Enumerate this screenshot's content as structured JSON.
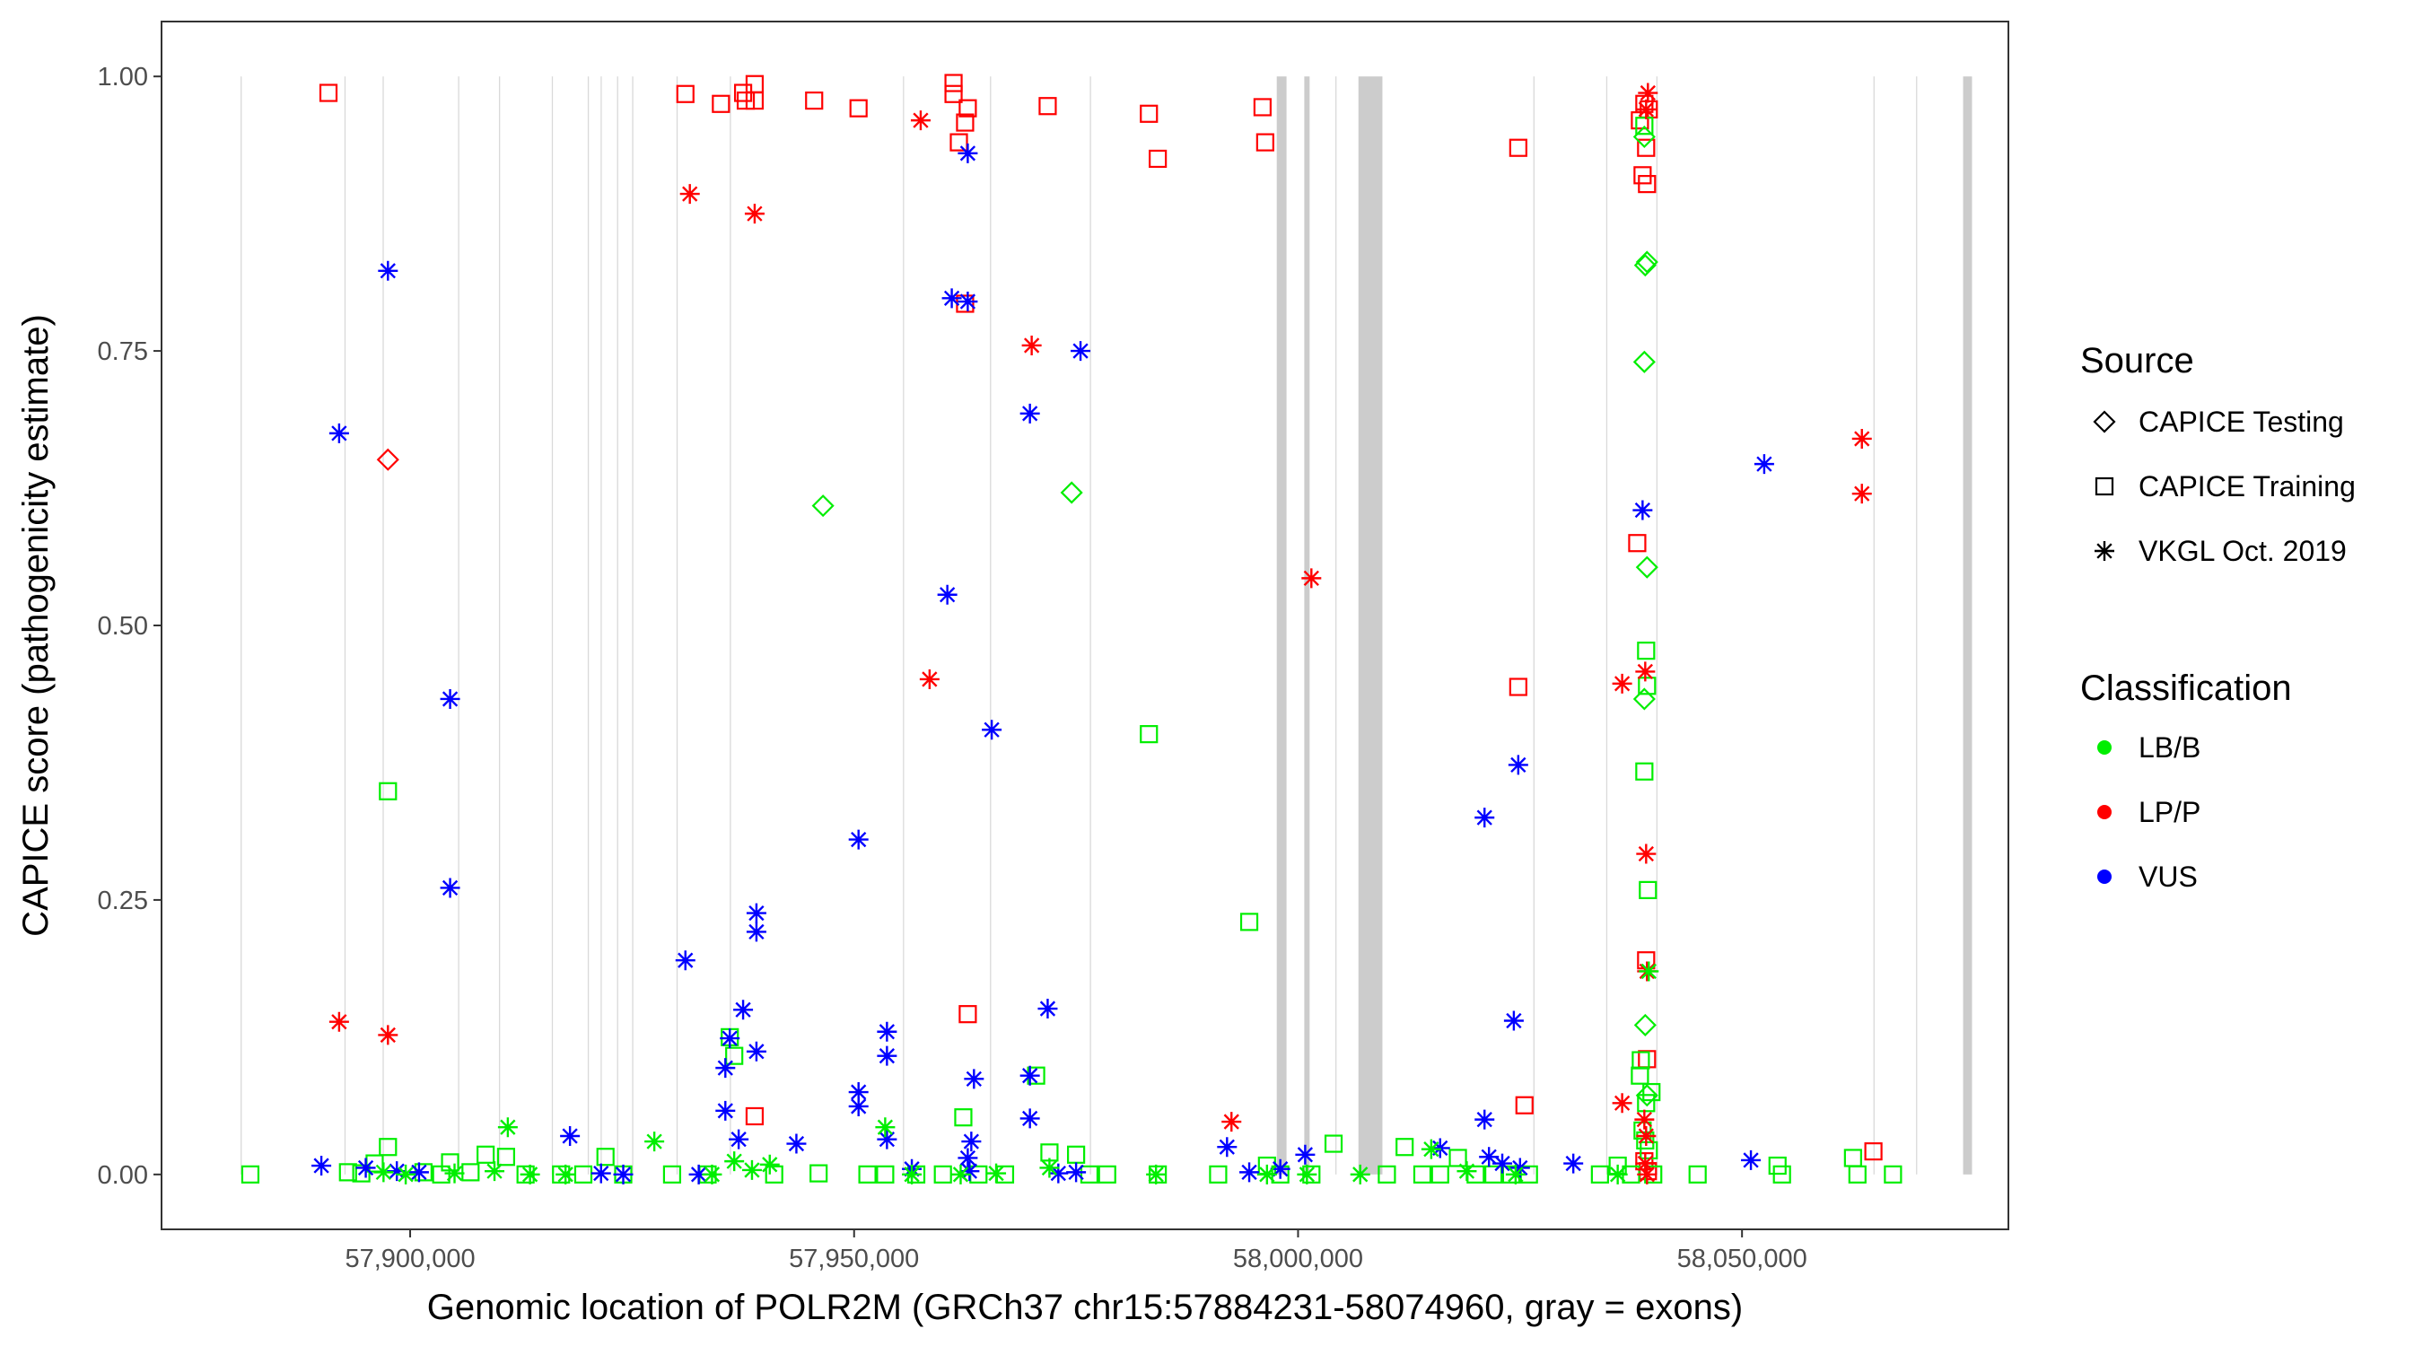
{
  "chart_data": {
    "type": "scatter",
    "xlabel": "Genomic location of POLR2M (GRCh37 chr15:57884231-58074960, gray = exons)",
    "ylabel": "CAPICE score (pathogenicity estimate)",
    "xlim": [
      57872000,
      58080000
    ],
    "ylim": [
      -0.05,
      1.05
    ],
    "x_ticks": [
      57900000,
      57950000,
      58000000,
      58050000
    ],
    "x_tick_labels": [
      "57,900,000",
      "57,950,000",
      "58,000,000",
      "58,050,000"
    ],
    "y_ticks": [
      0.0,
      0.25,
      0.5,
      0.75,
      1.0
    ],
    "y_tick_labels": [
      "0.00",
      "0.25",
      "0.50",
      "0.75",
      "1.00"
    ],
    "exons": [
      [
        57880900,
        57880950
      ],
      [
        57892600,
        57892650
      ],
      [
        57896900,
        57896950
      ],
      [
        57905400,
        57905450
      ],
      [
        57910000,
        57910050
      ],
      [
        57915950,
        57916000
      ],
      [
        57920000,
        57920050
      ],
      [
        57921450,
        57921500
      ],
      [
        57923300,
        57923350
      ],
      [
        57925000,
        57925050
      ],
      [
        57930000,
        57930050
      ],
      [
        57936000,
        57936050
      ],
      [
        57955500,
        57955550
      ],
      [
        57965300,
        57965350
      ],
      [
        57976550,
        57976600
      ],
      [
        57997600,
        57998700
      ],
      [
        58000700,
        58001300
      ],
      [
        58004200,
        58004250
      ],
      [
        58006800,
        58009500
      ],
      [
        58026500,
        58026550
      ],
      [
        58034700,
        58034750
      ],
      [
        58040350,
        58040400
      ],
      [
        58064800,
        58064850
      ],
      [
        58069600,
        58069650
      ],
      [
        58074900,
        58075900
      ]
    ],
    "legend": {
      "source_title": "Source",
      "source_items": [
        {
          "label": "CAPICE Testing",
          "shape": "diamond"
        },
        {
          "label": "CAPICE Training",
          "shape": "square"
        },
        {
          "label": "VKGL Oct. 2019",
          "shape": "asterisk"
        }
      ],
      "class_title": "Classification",
      "class_items": [
        {
          "label": "LB/B",
          "color": "#00ee00"
        },
        {
          "label": "LP/P",
          "color": "#ff0000"
        },
        {
          "label": "VUS",
          "color": "#0000ff"
        }
      ]
    },
    "colors": {
      "LB/B": "#00ee00",
      "LP/P": "#ff0000",
      "VUS": "#0000ff",
      "exon": "#cccccc"
    },
    "series": [
      {
        "name": "CAPICE Training LP/P",
        "source": "CAPICE Training",
        "class": "LP/P",
        "points": [
          [
            57890800,
            0.985
          ],
          [
            57931000,
            0.984
          ],
          [
            57935000,
            0.975
          ],
          [
            57937500,
            0.985
          ],
          [
            57937800,
            0.978
          ],
          [
            57938800,
            0.993
          ],
          [
            57938800,
            0.978
          ],
          [
            57945500,
            0.978
          ],
          [
            57950500,
            0.971
          ],
          [
            57961200,
            0.994
          ],
          [
            57961200,
            0.984
          ],
          [
            57962500,
            0.958
          ],
          [
            57962800,
            0.971
          ],
          [
            57961800,
            0.94
          ],
          [
            57971800,
            0.973
          ],
          [
            57983200,
            0.966
          ],
          [
            57984200,
            0.925
          ],
          [
            57996000,
            0.972
          ],
          [
            57996300,
            0.94
          ],
          [
            58024800,
            0.935
          ],
          [
            57962500,
            0.793
          ],
          [
            58038200,
            0.575
          ],
          [
            58024800,
            0.444
          ],
          [
            58039200,
            0.935
          ],
          [
            58038800,
            0.91
          ],
          [
            58039300,
            0.902
          ],
          [
            58039000,
            0.975
          ],
          [
            58038500,
            0.96
          ],
          [
            58039500,
            0.97
          ],
          [
            58039200,
            0.195
          ],
          [
            58039300,
            0.105
          ],
          [
            58025500,
            0.063
          ],
          [
            58039000,
            0.012
          ],
          [
            57938800,
            0.053
          ],
          [
            57962800,
            0.146
          ],
          [
            58064800,
            0.021
          ],
          [
            58039400,
            0.003
          ]
        ]
      },
      {
        "name": "CAPICE Training LB/B",
        "source": "CAPICE Training",
        "class": "LB/B",
        "points": [
          [
            57897500,
            0.349
          ],
          [
            57897500,
            0.025
          ],
          [
            57893000,
            0.002
          ],
          [
            57894500,
            0.001
          ],
          [
            57896000,
            0.01
          ],
          [
            57882000,
            0.0
          ],
          [
            57901500,
            0.002
          ],
          [
            57903500,
            0.0
          ],
          [
            57904500,
            0.011
          ],
          [
            57906800,
            0.002
          ],
          [
            57908500,
            0.018
          ],
          [
            57910800,
            0.016
          ],
          [
            57913000,
            0.0
          ],
          [
            57917000,
            0.0
          ],
          [
            57919500,
            0.0
          ],
          [
            57922000,
            0.016
          ],
          [
            57924000,
            0.0
          ],
          [
            57929500,
            0.0
          ],
          [
            57933500,
            0.0
          ],
          [
            57936000,
            0.125
          ],
          [
            57936500,
            0.108
          ],
          [
            57941000,
            0.0
          ],
          [
            57946000,
            0.001
          ],
          [
            57951500,
            0.0
          ],
          [
            57953500,
            0.0
          ],
          [
            57957000,
            0.0
          ],
          [
            57960000,
            0.0
          ],
          [
            57962300,
            0.052
          ],
          [
            57964000,
            0.0
          ],
          [
            57967000,
            0.0
          ],
          [
            57970500,
            0.09
          ],
          [
            57972000,
            0.02
          ],
          [
            57975000,
            0.018
          ],
          [
            57976500,
            0.0
          ],
          [
            57978500,
            0.0
          ],
          [
            57983200,
            0.401
          ],
          [
            57984200,
            0.0
          ],
          [
            57991000,
            0.0
          ],
          [
            57994500,
            0.23
          ],
          [
            57996500,
            0.008
          ],
          [
            57998000,
            0.0
          ],
          [
            58001500,
            0.0
          ],
          [
            58004000,
            0.028
          ],
          [
            58010000,
            0.0
          ],
          [
            58012000,
            0.025
          ],
          [
            58014000,
            0.0
          ],
          [
            58016000,
            0.0
          ],
          [
            58018000,
            0.015
          ],
          [
            58020000,
            0.0
          ],
          [
            58022000,
            0.0
          ],
          [
            58024000,
            0.0
          ],
          [
            58026000,
            0.0
          ],
          [
            58034000,
            0.0
          ],
          [
            58036000,
            0.008
          ],
          [
            58037500,
            0.0
          ],
          [
            58038500,
            0.09
          ],
          [
            58039200,
            0.477
          ],
          [
            58039300,
            0.445
          ],
          [
            58039000,
            0.367
          ],
          [
            58039400,
            0.259
          ],
          [
            58039200,
            0.065
          ],
          [
            58038800,
            0.04
          ],
          [
            58040000,
            0.0
          ],
          [
            58045000,
            0.0
          ],
          [
            58054000,
            0.008
          ],
          [
            58054500,
            0.0
          ],
          [
            58062500,
            0.015
          ],
          [
            58063000,
            0.0
          ],
          [
            58067000,
            0.0
          ],
          [
            58039100,
            0.031
          ],
          [
            58039500,
            0.022
          ],
          [
            58039800,
            0.075
          ],
          [
            58038600,
            0.104
          ],
          [
            58039000,
            0.955
          ]
        ]
      },
      {
        "name": "CAPICE Testing LP/P",
        "source": "CAPICE Testing",
        "class": "LP/P",
        "points": [
          [
            57897500,
            0.651
          ]
        ]
      },
      {
        "name": "CAPICE Testing LB/B",
        "source": "CAPICE Testing",
        "class": "LB/B",
        "points": [
          [
            57946500,
            0.609
          ],
          [
            57974500,
            0.621
          ],
          [
            58039000,
            0.945
          ],
          [
            58039300,
            0.831
          ],
          [
            58039100,
            0.828
          ],
          [
            58039000,
            0.74
          ],
          [
            58039300,
            0.553
          ],
          [
            58039000,
            0.433
          ],
          [
            58039100,
            0.136
          ],
          [
            58039300,
            0.072
          ]
        ]
      },
      {
        "name": "VKGL Oct. 2019 LP/P",
        "source": "VKGL Oct. 2019",
        "class": "LP/P",
        "points": [
          [
            57931500,
            0.893
          ],
          [
            57938800,
            0.875
          ],
          [
            57957500,
            0.96
          ],
          [
            57970000,
            0.755
          ],
          [
            57958500,
            0.451
          ],
          [
            58001500,
            0.543
          ],
          [
            57992500,
            0.048
          ],
          [
            57892000,
            0.139
          ],
          [
            57897500,
            0.127
          ],
          [
            58036500,
            0.447
          ],
          [
            58039100,
            0.458
          ],
          [
            58039200,
            0.292
          ],
          [
            58039300,
            0.185
          ],
          [
            58036500,
            0.065
          ],
          [
            58039000,
            0.05
          ],
          [
            58039200,
            0.035
          ],
          [
            58039100,
            0.01
          ],
          [
            58039300,
            0.0
          ],
          [
            58039400,
            0.985
          ],
          [
            58039200,
            0.97
          ],
          [
            58063500,
            0.67
          ],
          [
            58063500,
            0.62
          ]
        ]
      },
      {
        "name": "VKGL Oct. 2019 VUS",
        "source": "VKGL Oct. 2019",
        "class": "VUS",
        "points": [
          [
            57897500,
            0.823
          ],
          [
            57892000,
            0.675
          ],
          [
            57904500,
            0.433
          ],
          [
            57904500,
            0.261
          ],
          [
            57931000,
            0.195
          ],
          [
            57936000,
            0.124
          ],
          [
            57935500,
            0.097
          ],
          [
            57937500,
            0.15
          ],
          [
            57939000,
            0.238
          ],
          [
            57939000,
            0.221
          ],
          [
            57939000,
            0.112
          ],
          [
            57935500,
            0.058
          ],
          [
            57937000,
            0.032
          ],
          [
            57943500,
            0.028
          ],
          [
            57950500,
            0.305
          ],
          [
            57950500,
            0.075
          ],
          [
            57950500,
            0.062
          ],
          [
            57953700,
            0.13
          ],
          [
            57953700,
            0.108
          ],
          [
            57953700,
            0.032
          ],
          [
            57960500,
            0.528
          ],
          [
            57961000,
            0.798
          ],
          [
            57962800,
            0.795
          ],
          [
            57962800,
            0.93
          ],
          [
            57965500,
            0.405
          ],
          [
            57969800,
            0.693
          ],
          [
            57975500,
            0.75
          ],
          [
            57971800,
            0.151
          ],
          [
            57969800,
            0.09
          ],
          [
            57969800,
            0.051
          ],
          [
            57963500,
            0.087
          ],
          [
            57963200,
            0.03
          ],
          [
            57962800,
            0.015
          ],
          [
            57890000,
            0.008
          ],
          [
            57895000,
            0.006
          ],
          [
            57898500,
            0.003
          ],
          [
            57901000,
            0.002
          ],
          [
            57918000,
            0.035
          ],
          [
            57921500,
            0.001
          ],
          [
            57924000,
            0.0
          ],
          [
            57932500,
            0.0
          ],
          [
            57956500,
            0.005
          ],
          [
            57963000,
            0.003
          ],
          [
            57973000,
            0.001
          ],
          [
            57975000,
            0.002
          ],
          [
            57992000,
            0.025
          ],
          [
            57994500,
            0.002
          ],
          [
            57998000,
            0.005
          ],
          [
            58000800,
            0.018
          ],
          [
            58016000,
            0.024
          ],
          [
            58021000,
            0.325
          ],
          [
            58024300,
            0.14
          ],
          [
            58024800,
            0.373
          ],
          [
            58021000,
            0.05
          ],
          [
            58021500,
            0.016
          ],
          [
            58025000,
            0.006
          ],
          [
            58031000,
            0.01
          ],
          [
            58038800,
            0.605
          ],
          [
            58052500,
            0.647
          ],
          [
            58051000,
            0.013
          ],
          [
            58023000,
            0.01
          ]
        ]
      },
      {
        "name": "VKGL Oct. 2019 LB/B",
        "source": "VKGL Oct. 2019",
        "class": "LB/B",
        "points": [
          [
            57897000,
            0.002
          ],
          [
            57899500,
            0.0
          ],
          [
            57905000,
            0.001
          ],
          [
            57909500,
            0.003
          ],
          [
            57911000,
            0.043
          ],
          [
            57913500,
            0.0
          ],
          [
            57917500,
            0.0
          ],
          [
            57927500,
            0.03
          ],
          [
            57934000,
            0.0
          ],
          [
            57936500,
            0.012
          ],
          [
            57938500,
            0.004
          ],
          [
            57940500,
            0.009
          ],
          [
            57953500,
            0.043
          ],
          [
            57956500,
            0.0
          ],
          [
            57962000,
            0.0
          ],
          [
            57966000,
            0.001
          ],
          [
            57972000,
            0.006
          ],
          [
            57984000,
            0.0
          ],
          [
            57996500,
            0.0
          ],
          [
            58001000,
            0.0
          ],
          [
            58007000,
            0.0
          ],
          [
            58015000,
            0.023
          ],
          [
            58019000,
            0.003
          ],
          [
            58024500,
            0.0
          ],
          [
            58036000,
            0.0
          ],
          [
            58039500,
            0.185
          ]
        ]
      }
    ]
  }
}
